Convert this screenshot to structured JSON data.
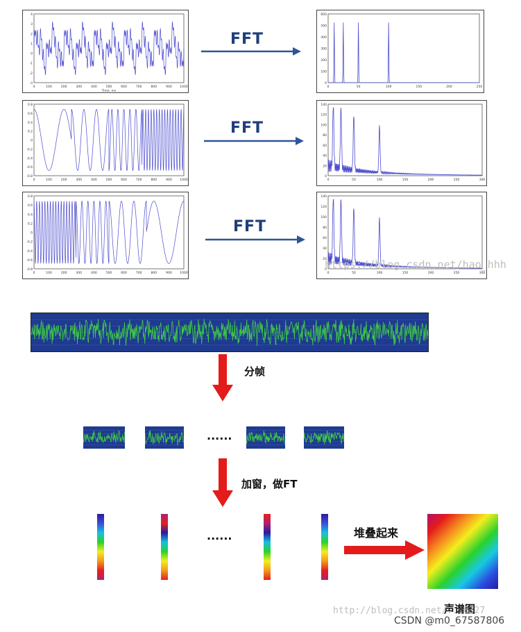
{
  "fft_section": {
    "rows": [
      {
        "arrow_label": "FFT",
        "time_plot": {
          "kind": "sum",
          "y_ticks": [
            "4",
            "3",
            "2",
            "1",
            "0",
            "-1",
            "-2",
            "-3"
          ],
          "x_ticks": [
            "0",
            "100",
            "200",
            "300",
            "400",
            "500",
            "600",
            "700",
            "800",
            "900",
            "1000"
          ],
          "x_title": "Time, ms"
        },
        "freq_plot": {
          "y_ticks": [
            "600",
            "500",
            "400",
            "300",
            "200",
            "100",
            "0"
          ],
          "x_ticks": [
            "0",
            "50",
            "100",
            "150",
            "200",
            "250"
          ],
          "peaks_x": [
            10,
            25,
            50,
            100
          ],
          "xmax": 250,
          "noisy": false
        }
      },
      {
        "arrow_label": "FFT",
        "time_plot": {
          "kind": "chirp_up",
          "y_ticks": [
            "0.8",
            "0.6",
            "0.4",
            "0.2",
            "0",
            "-0.2",
            "-0.4",
            "-0.6",
            "-0.8"
          ],
          "x_ticks": [
            "0",
            "100",
            "200",
            "300",
            "400",
            "500",
            "600",
            "700",
            "800",
            "900",
            "1000"
          ],
          "x_title": ""
        },
        "freq_plot": {
          "y_ticks": [
            "140",
            "120",
            "100",
            "80",
            "60",
            "40",
            "20",
            "0"
          ],
          "x_ticks": [
            "0",
            "50",
            "100",
            "150",
            "200",
            "250",
            "300"
          ],
          "peaks_x": [
            10,
            25,
            50,
            100
          ],
          "xmax": 300,
          "noisy": true
        }
      },
      {
        "arrow_label": "FFT",
        "time_plot": {
          "kind": "chirp_down",
          "y_ticks": [
            "0.8",
            "0.6",
            "0.4",
            "0.2",
            "0",
            "-0.2",
            "-0.4",
            "-0.6",
            "-0.8"
          ],
          "x_ticks": [
            "0",
            "100",
            "200",
            "300",
            "400",
            "500",
            "600",
            "700",
            "800",
            "900",
            "1000"
          ],
          "x_title": ""
        },
        "freq_plot": {
          "y_ticks": [
            "140",
            "120",
            "100",
            "80",
            "60",
            "40",
            "20",
            "0"
          ],
          "x_ticks": [
            "0",
            "50",
            "100",
            "150",
            "200",
            "250",
            "300"
          ],
          "peaks_x": [
            10,
            25,
            50,
            100
          ],
          "xmax": 300,
          "noisy": true
        }
      }
    ],
    "watermark": "https://blog.csdn.net/hao_hhh"
  },
  "spectrogram_section": {
    "step1_label": "分帧",
    "step2_label": "加窗，做FT",
    "ellipsis": "......",
    "stack_label": "堆叠起来",
    "result_label": "声谱图"
  },
  "footer": {
    "watermark": "http://blog.csdn.net/...6327",
    "credit": "CSDN @m0_67587806"
  },
  "colors": {
    "fft_text": "#1f3e7a",
    "fft_arrow": "#2f5597",
    "plot_line": "#4b4bd0",
    "red_arrow": "#e41b1b",
    "frame_bg": "#1f3a8f",
    "frame_wave": "#3fcf3f"
  }
}
